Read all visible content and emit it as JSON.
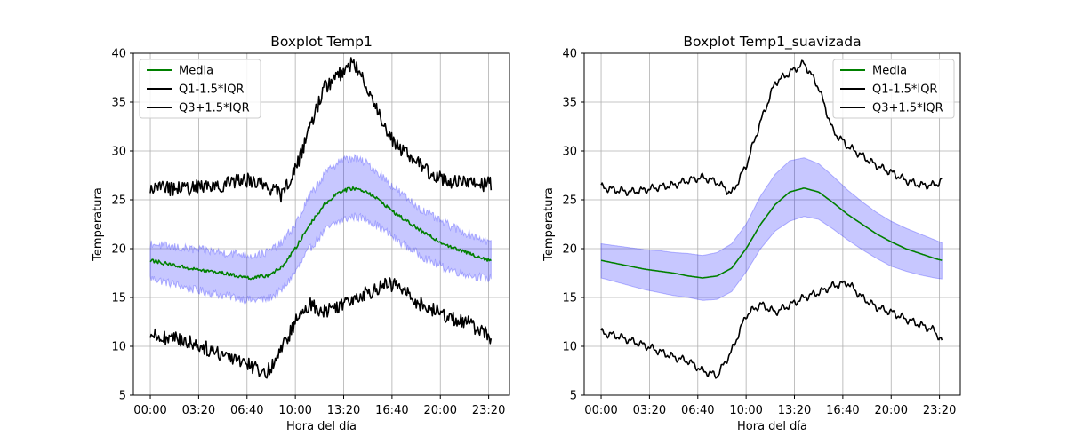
{
  "figure": {
    "background": "#ffffff"
  },
  "chart_data": [
    {
      "type": "line",
      "title": "Boxplot Temp1",
      "xlabel": "Hora del día",
      "ylabel": "Temperatura",
      "xlim": [
        0,
        24
      ],
      "ylim": [
        5,
        40
      ],
      "x_ticks": [
        "00:00",
        "03:20",
        "06:40",
        "10:00",
        "13:20",
        "16:40",
        "20:00",
        "23:20"
      ],
      "x_tick_hours": [
        0,
        3.333,
        6.667,
        10,
        13.333,
        16.667,
        20,
        23.333
      ],
      "y_ticks": [
        5,
        10,
        15,
        20,
        25,
        30,
        35,
        40
      ],
      "grid": true,
      "legend_position": "top-left",
      "smoothed": false,
      "x": [
        0,
        1,
        2,
        3,
        4,
        5,
        6,
        7,
        8,
        9,
        10,
        11,
        12,
        13,
        14,
        15,
        16,
        17,
        18,
        19,
        20,
        21,
        22,
        23,
        23.5
      ],
      "series": [
        {
          "name": "Media",
          "color": "#008000",
          "values": [
            18.8,
            18.5,
            18.2,
            17.9,
            17.7,
            17.5,
            17.2,
            17.0,
            17.2,
            18.0,
            20.0,
            22.5,
            24.5,
            25.8,
            26.2,
            25.8,
            24.7,
            23.5,
            22.5,
            21.5,
            20.7,
            20.0,
            19.5,
            19.0,
            18.8
          ]
        },
        {
          "name": "Q1-1.5*IQR",
          "color": "#000000",
          "values": [
            11.2,
            10.9,
            10.7,
            10.3,
            9.7,
            9.2,
            8.8,
            8.0,
            7.2,
            9.5,
            12.5,
            14.3,
            13.6,
            14.2,
            15.0,
            15.5,
            16.2,
            16.3,
            15.0,
            14.0,
            13.4,
            12.8,
            12.3,
            11.5,
            10.7
          ]
        },
        {
          "name": "Q3+1.5*IQR",
          "color": "#000000",
          "values": [
            26.3,
            26.2,
            26.1,
            26.2,
            26.5,
            26.5,
            27.0,
            27.0,
            26.5,
            25.5,
            28.0,
            32.5,
            36.5,
            37.8,
            39.0,
            36.5,
            33.0,
            30.5,
            29.5,
            28.0,
            27.2,
            26.8,
            26.7,
            26.6,
            26.7
          ]
        }
      ],
      "band": {
        "color": "#0000ff",
        "lower": [
          17.0,
          16.6,
          16.2,
          15.8,
          15.5,
          15.2,
          15.0,
          14.7,
          14.8,
          15.6,
          17.6,
          20.0,
          21.8,
          22.8,
          23.3,
          23.0,
          22.0,
          20.9,
          19.9,
          19.0,
          18.2,
          17.7,
          17.3,
          17.0,
          16.9
        ],
        "upper": [
          20.5,
          20.3,
          20.1,
          19.9,
          19.8,
          19.6,
          19.5,
          19.3,
          19.6,
          20.5,
          22.5,
          25.4,
          27.6,
          29.0,
          29.3,
          28.7,
          27.4,
          26.0,
          24.8,
          23.7,
          22.8,
          22.1,
          21.5,
          20.9,
          20.6
        ]
      }
    },
    {
      "type": "line",
      "title": "Boxplot Temp1_suavizada",
      "xlabel": "Hora del día",
      "ylabel": "Temperatura",
      "xlim": [
        0,
        24
      ],
      "ylim": [
        5,
        40
      ],
      "x_ticks": [
        "00:00",
        "03:20",
        "06:40",
        "10:00",
        "13:20",
        "16:40",
        "20:00",
        "23:20"
      ],
      "x_tick_hours": [
        0,
        3.333,
        6.667,
        10,
        13.333,
        16.667,
        20,
        23.333
      ],
      "y_ticks": [
        5,
        10,
        15,
        20,
        25,
        30,
        35,
        40
      ],
      "grid": true,
      "legend_position": "top-right",
      "smoothed": true,
      "x": [
        0,
        1,
        2,
        3,
        4,
        5,
        6,
        7,
        8,
        9,
        10,
        11,
        12,
        13,
        14,
        15,
        16,
        17,
        18,
        19,
        20,
        21,
        22,
        23,
        23.5
      ],
      "series": [
        {
          "name": "Media",
          "color": "#008000",
          "values": [
            18.8,
            18.5,
            18.2,
            17.9,
            17.7,
            17.5,
            17.2,
            17.0,
            17.2,
            18.0,
            20.0,
            22.5,
            24.5,
            25.8,
            26.2,
            25.8,
            24.7,
            23.5,
            22.5,
            21.5,
            20.7,
            20.0,
            19.5,
            19.0,
            18.8
          ]
        },
        {
          "name": "Q1-1.5*IQR",
          "color": "#000000",
          "values": [
            11.4,
            11.1,
            10.6,
            10.1,
            9.5,
            8.9,
            8.5,
            7.5,
            7.0,
            9.5,
            13.2,
            14.3,
            13.5,
            14.2,
            15.0,
            15.5,
            16.2,
            16.5,
            15.0,
            14.0,
            13.5,
            12.8,
            12.2,
            11.6,
            10.5
          ]
        },
        {
          "name": "Q3+1.5*IQR",
          "color": "#000000",
          "values": [
            26.3,
            26.0,
            25.8,
            26.0,
            26.3,
            26.5,
            27.0,
            27.3,
            26.8,
            25.6,
            28.5,
            33.0,
            37.0,
            38.0,
            39.0,
            36.5,
            32.0,
            30.5,
            29.5,
            28.5,
            27.8,
            27.0,
            26.5,
            26.5,
            27.0
          ]
        }
      ],
      "band": {
        "color": "#0000ff",
        "lower": [
          17.0,
          16.6,
          16.2,
          15.8,
          15.5,
          15.2,
          15.0,
          14.7,
          14.8,
          15.6,
          17.6,
          20.0,
          21.8,
          22.8,
          23.3,
          23.0,
          22.0,
          20.9,
          19.9,
          19.0,
          18.2,
          17.7,
          17.3,
          17.0,
          16.9
        ],
        "upper": [
          20.5,
          20.3,
          20.1,
          19.9,
          19.8,
          19.6,
          19.5,
          19.3,
          19.6,
          20.5,
          22.5,
          25.4,
          27.6,
          29.0,
          29.3,
          28.7,
          27.4,
          26.0,
          24.8,
          23.7,
          22.8,
          22.1,
          21.5,
          20.9,
          20.6
        ]
      }
    }
  ]
}
